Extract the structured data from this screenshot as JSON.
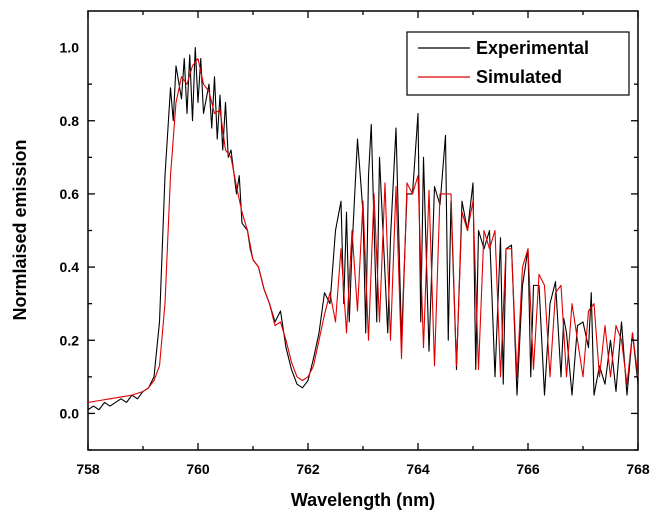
{
  "chart_data": {
    "type": "line",
    "title": "",
    "xlabel": "Wavelength (nm)",
    "ylabel": "Normlaised emission",
    "xlim": [
      758,
      768
    ],
    "ylim": [
      -0.1,
      1.1
    ],
    "xticks": [
      "758",
      "760",
      "762",
      "764",
      "766",
      "768"
    ],
    "yticks": [
      "0.0",
      "0.2",
      "0.4",
      "0.6",
      "0.8",
      "1.0"
    ],
    "grid": false,
    "legend_position": "top-right",
    "series": [
      {
        "name": "Experimental",
        "color": "#000000",
        "x": [
          758.0,
          758.1,
          758.2,
          758.3,
          758.4,
          758.5,
          758.6,
          758.7,
          758.8,
          758.9,
          759.0,
          759.1,
          759.2,
          759.3,
          759.4,
          759.5,
          759.55,
          759.6,
          759.7,
          759.75,
          759.8,
          759.85,
          759.9,
          759.95,
          760.0,
          760.05,
          760.1,
          760.2,
          760.25,
          760.3,
          760.35,
          760.4,
          760.45,
          760.5,
          760.55,
          760.6,
          760.7,
          760.75,
          760.8,
          760.9,
          760.95,
          761.0,
          761.1,
          761.2,
          761.3,
          761.4,
          761.5,
          761.6,
          761.7,
          761.8,
          761.9,
          762.0,
          762.1,
          762.2,
          762.3,
          762.4,
          762.5,
          762.6,
          762.65,
          762.7,
          762.75,
          762.8,
          762.9,
          763.0,
          763.05,
          763.1,
          763.15,
          763.25,
          763.3,
          763.45,
          763.5,
          763.6,
          763.7,
          763.8,
          763.9,
          764.0,
          764.05,
          764.1,
          764.2,
          764.3,
          764.4,
          764.5,
          764.55,
          764.6,
          764.7,
          764.8,
          764.9,
          765.0,
          765.05,
          765.1,
          765.2,
          765.3,
          765.4,
          765.5,
          765.55,
          765.6,
          765.7,
          765.8,
          765.9,
          766.0,
          766.05,
          766.1,
          766.2,
          766.3,
          766.4,
          766.5,
          766.6,
          766.65,
          766.7,
          766.8,
          766.9,
          767.0,
          767.1,
          767.15,
          767.2,
          767.3,
          767.4,
          767.5,
          767.6,
          767.7,
          767.8,
          767.9,
          768.0
        ],
        "y": [
          0.01,
          0.02,
          0.01,
          0.03,
          0.02,
          0.03,
          0.04,
          0.03,
          0.05,
          0.04,
          0.06,
          0.07,
          0.1,
          0.25,
          0.65,
          0.89,
          0.8,
          0.95,
          0.86,
          0.97,
          0.82,
          0.98,
          0.8,
          1.0,
          0.85,
          0.97,
          0.82,
          0.9,
          0.78,
          0.92,
          0.75,
          0.87,
          0.72,
          0.85,
          0.7,
          0.72,
          0.6,
          0.65,
          0.52,
          0.5,
          0.45,
          0.42,
          0.4,
          0.34,
          0.3,
          0.25,
          0.28,
          0.18,
          0.12,
          0.08,
          0.07,
          0.09,
          0.15,
          0.22,
          0.33,
          0.3,
          0.5,
          0.58,
          0.3,
          0.55,
          0.25,
          0.45,
          0.75,
          0.55,
          0.22,
          0.65,
          0.79,
          0.25,
          0.7,
          0.22,
          0.48,
          0.78,
          0.2,
          0.6,
          0.6,
          0.82,
          0.25,
          0.7,
          0.17,
          0.62,
          0.57,
          0.76,
          0.2,
          0.58,
          0.12,
          0.58,
          0.5,
          0.63,
          0.12,
          0.5,
          0.45,
          0.5,
          0.1,
          0.48,
          0.08,
          0.45,
          0.46,
          0.05,
          0.35,
          0.45,
          0.1,
          0.35,
          0.35,
          0.05,
          0.3,
          0.36,
          0.1,
          0.26,
          0.22,
          0.05,
          0.24,
          0.25,
          0.18,
          0.33,
          0.05,
          0.13,
          0.08,
          0.2,
          0.06,
          0.25,
          0.05,
          0.22,
          0.08
        ]
      },
      {
        "name": "Simulated",
        "color": "#e00000",
        "x": [
          758.0,
          758.2,
          758.4,
          758.6,
          758.8,
          759.0,
          759.1,
          759.2,
          759.3,
          759.4,
          759.5,
          759.6,
          759.7,
          759.8,
          759.9,
          760.0,
          760.1,
          760.2,
          760.3,
          760.4,
          760.5,
          760.6,
          760.7,
          760.8,
          760.9,
          761.0,
          761.1,
          761.2,
          761.3,
          761.4,
          761.5,
          761.6,
          761.7,
          761.8,
          761.9,
          762.0,
          762.1,
          762.2,
          762.3,
          762.4,
          762.5,
          762.6,
          762.7,
          762.8,
          762.9,
          763.0,
          763.1,
          763.2,
          763.3,
          763.4,
          763.5,
          763.6,
          763.7,
          763.8,
          763.9,
          764.0,
          764.1,
          764.2,
          764.3,
          764.4,
          764.5,
          764.6,
          764.7,
          764.8,
          764.9,
          765.0,
          765.1,
          765.2,
          765.3,
          765.4,
          765.5,
          765.6,
          765.7,
          765.8,
          765.9,
          766.0,
          766.1,
          766.2,
          766.3,
          766.4,
          766.5,
          766.6,
          766.7,
          766.8,
          766.9,
          767.0,
          767.1,
          767.2,
          767.3,
          767.4,
          767.5,
          767.6,
          767.7,
          767.8,
          767.9,
          768.0
        ],
        "y": [
          0.03,
          0.035,
          0.04,
          0.045,
          0.05,
          0.06,
          0.07,
          0.09,
          0.13,
          0.3,
          0.65,
          0.85,
          0.92,
          0.9,
          0.95,
          0.97,
          0.9,
          0.88,
          0.82,
          0.83,
          0.72,
          0.7,
          0.62,
          0.55,
          0.5,
          0.42,
          0.4,
          0.34,
          0.3,
          0.24,
          0.25,
          0.2,
          0.14,
          0.1,
          0.09,
          0.1,
          0.13,
          0.2,
          0.27,
          0.33,
          0.25,
          0.45,
          0.22,
          0.5,
          0.28,
          0.58,
          0.2,
          0.6,
          0.25,
          0.63,
          0.2,
          0.62,
          0.15,
          0.63,
          0.6,
          0.65,
          0.18,
          0.61,
          0.13,
          0.6,
          0.6,
          0.6,
          0.13,
          0.55,
          0.5,
          0.58,
          0.12,
          0.5,
          0.45,
          0.5,
          0.1,
          0.45,
          0.45,
          0.1,
          0.4,
          0.45,
          0.12,
          0.38,
          0.35,
          0.1,
          0.33,
          0.35,
          0.1,
          0.3,
          0.2,
          0.1,
          0.28,
          0.3,
          0.1,
          0.24,
          0.1,
          0.24,
          0.2,
          0.08,
          0.22,
          0.1
        ]
      }
    ]
  }
}
